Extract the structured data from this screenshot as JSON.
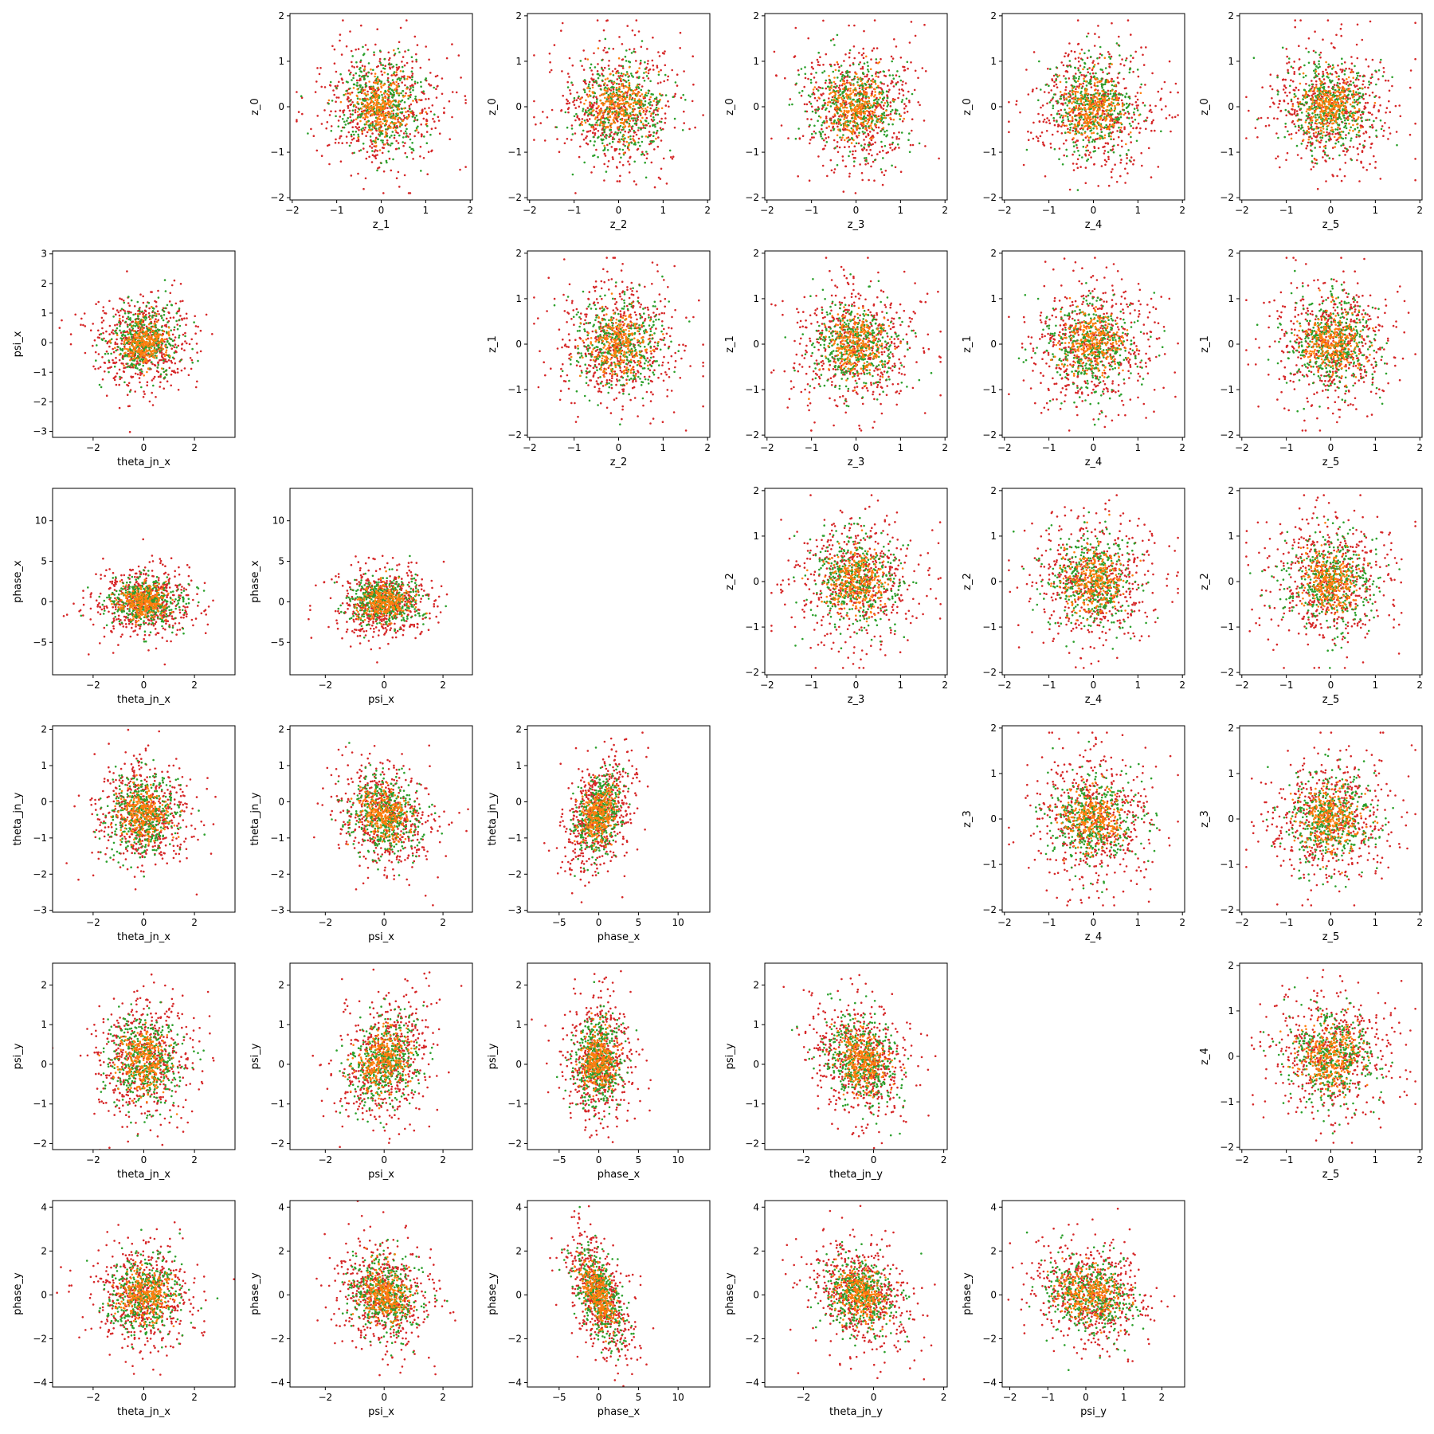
{
  "figure": {
    "type": "scatter-grid",
    "rows": 6,
    "cols": 6,
    "palette": {
      "red": "#d62728",
      "green": "#2ca02c",
      "orange": "#ff7f0e",
      "axis": "#000000",
      "background": "#ffffff"
    }
  },
  "axis_specs": {
    "z": {
      "lim": [
        -2.05,
        2.05
      ],
      "ticks": [
        -2,
        -1,
        0,
        1,
        2
      ],
      "std": 0.72,
      "clip": 1.9
    },
    "theta_jn_x": {
      "lim": [
        -3.6,
        3.6
      ],
      "ticks": [
        -2,
        0,
        2
      ],
      "mean": 0.0,
      "std": 1.0
    },
    "psi_x": {
      "lim": [
        -3.2,
        3.0
      ],
      "ticks": [
        -2,
        0,
        2
      ],
      "mean": 0.0,
      "std": 0.85
    },
    "phase_x": {
      "lim": [
        -9.5,
        14.0
      ],
      "ticks": [
        -5,
        0,
        5,
        10
      ],
      "mean": 0.0,
      "std": 2.2
    },
    "theta_jn_y": {
      "lim": [
        -3.0,
        2.1
      ],
      "ticks": [
        -2,
        0,
        2
      ],
      "tick_labels_y": [
        -3,
        -2,
        -1,
        0,
        1,
        2
      ],
      "mean": -0.35,
      "std": 0.75
    },
    "psi_y": {
      "lim": [
        -2.15,
        2.55
      ],
      "ticks": [
        -2,
        -1,
        0,
        1,
        2
      ],
      "mean": 0.1,
      "std": 0.8
    },
    "phase_y": {
      "lim": [
        -4.2,
        4.3
      ],
      "ticks": [
        -4,
        -2,
        0,
        2,
        4
      ],
      "mean": 0.0,
      "std": 1.25
    },
    "theta_jn_y_as_x": {
      "lim": [
        -3.1,
        2.1
      ],
      "ticks": [
        -2,
        0,
        2
      ]
    },
    "psi_y_as_x": {
      "lim": [
        -2.2,
        2.6
      ],
      "ticks": [
        -2,
        -1,
        0,
        1,
        2
      ]
    }
  },
  "chart_data": [
    {
      "type": "scatter",
      "row": 0,
      "col": 1,
      "xlabel": "z_1",
      "ylabel": "z_0",
      "xlim": [
        -2.05,
        2.05
      ],
      "ylim": [
        -2.05,
        2.05
      ],
      "xticks": [
        -2,
        -1,
        0,
        1,
        2
      ],
      "yticks": [
        -2,
        -1,
        0,
        1,
        2
      ],
      "x_range": "z",
      "y_range": "z",
      "seed": 11,
      "corr": 0
    },
    {
      "type": "scatter",
      "row": 0,
      "col": 2,
      "xlabel": "z_2",
      "ylabel": "z_0",
      "xlim": [
        -2.05,
        2.05
      ],
      "ylim": [
        -2.05,
        2.05
      ],
      "xticks": [
        -2,
        -1,
        0,
        1,
        2
      ],
      "yticks": [
        -2,
        -1,
        0,
        1,
        2
      ],
      "x_range": "z",
      "y_range": "z",
      "seed": 12,
      "corr": 0
    },
    {
      "type": "scatter",
      "row": 0,
      "col": 3,
      "xlabel": "z_3",
      "ylabel": "z_0",
      "xlim": [
        -2.05,
        2.05
      ],
      "ylim": [
        -2.05,
        2.05
      ],
      "xticks": [
        -2,
        -1,
        0,
        1,
        2
      ],
      "yticks": [
        -2,
        -1,
        0,
        1,
        2
      ],
      "x_range": "z",
      "y_range": "z",
      "seed": 13,
      "corr": 0
    },
    {
      "type": "scatter",
      "row": 0,
      "col": 4,
      "xlabel": "z_4",
      "ylabel": "z_0",
      "xlim": [
        -2.05,
        2.05
      ],
      "ylim": [
        -2.05,
        2.05
      ],
      "xticks": [
        -2,
        -1,
        0,
        1,
        2
      ],
      "yticks": [
        -2,
        -1,
        0,
        1,
        2
      ],
      "x_range": "z",
      "y_range": "z",
      "seed": 14,
      "corr": 0
    },
    {
      "type": "scatter",
      "row": 0,
      "col": 5,
      "xlabel": "z_5",
      "ylabel": "z_0",
      "xlim": [
        -2.05,
        2.05
      ],
      "ylim": [
        -2.05,
        2.05
      ],
      "xticks": [
        -2,
        -1,
        0,
        1,
        2
      ],
      "yticks": [
        -2,
        -1,
        0,
        1,
        2
      ],
      "x_range": "z",
      "y_range": "z",
      "seed": 15,
      "corr": 0
    },
    {
      "type": "scatter",
      "row": 1,
      "col": 0,
      "xlabel": "theta_jn_x",
      "ylabel": "psi_x",
      "xlim": [
        -3.6,
        3.6
      ],
      "ylim": [
        -3.2,
        3.1
      ],
      "xticks": [
        -2,
        0,
        2
      ],
      "yticks": [
        -3,
        -2,
        -1,
        0,
        1,
        2,
        3
      ],
      "x_range": "theta_jn_x",
      "y_range": "psi_x",
      "seed": 21,
      "corr": 0.1
    },
    {
      "type": "scatter",
      "row": 1,
      "col": 2,
      "xlabel": "z_2",
      "ylabel": "z_1",
      "xlim": [
        -2.05,
        2.05
      ],
      "ylim": [
        -2.05,
        2.05
      ],
      "xticks": [
        -2,
        -1,
        0,
        1,
        2
      ],
      "yticks": [
        -2,
        -1,
        0,
        1,
        2
      ],
      "x_range": "z",
      "y_range": "z",
      "seed": 22,
      "corr": 0
    },
    {
      "type": "scatter",
      "row": 1,
      "col": 3,
      "xlabel": "z_3",
      "ylabel": "z_1",
      "xlim": [
        -2.05,
        2.05
      ],
      "ylim": [
        -2.05,
        2.05
      ],
      "xticks": [
        -2,
        -1,
        0,
        1,
        2
      ],
      "yticks": [
        -2,
        -1,
        0,
        1,
        2
      ],
      "x_range": "z",
      "y_range": "z",
      "seed": 23,
      "corr": 0
    },
    {
      "type": "scatter",
      "row": 1,
      "col": 4,
      "xlabel": "z_4",
      "ylabel": "z_1",
      "xlim": [
        -2.05,
        2.05
      ],
      "ylim": [
        -2.05,
        2.05
      ],
      "xticks": [
        -2,
        -1,
        0,
        1,
        2
      ],
      "yticks": [
        -2,
        -1,
        0,
        1,
        2
      ],
      "x_range": "z",
      "y_range": "z",
      "seed": 24,
      "corr": 0
    },
    {
      "type": "scatter",
      "row": 1,
      "col": 5,
      "xlabel": "z_5",
      "ylabel": "z_1",
      "xlim": [
        -2.05,
        2.05
      ],
      "ylim": [
        -2.05,
        2.05
      ],
      "xticks": [
        -2,
        -1,
        0,
        1,
        2
      ],
      "yticks": [
        -2,
        -1,
        0,
        1,
        2
      ],
      "x_range": "z",
      "y_range": "z",
      "seed": 25,
      "corr": 0
    },
    {
      "type": "scatter",
      "row": 2,
      "col": 0,
      "xlabel": "theta_jn_x",
      "ylabel": "phase_x",
      "xlim": [
        -3.6,
        3.6
      ],
      "ylim": [
        -9.0,
        14.0
      ],
      "xticks": [
        -2,
        0,
        2
      ],
      "yticks": [
        -5,
        0,
        5,
        10
      ],
      "x_range": "theta_jn_x",
      "y_range": "phase_x",
      "seed": 31,
      "corr": 0
    },
    {
      "type": "scatter",
      "row": 2,
      "col": 1,
      "xlabel": "psi_x",
      "ylabel": "phase_x",
      "xlim": [
        -3.2,
        3.0
      ],
      "ylim": [
        -9.0,
        14.0
      ],
      "xticks": [
        -2,
        0,
        2
      ],
      "yticks": [
        -5,
        0,
        5,
        10
      ],
      "x_range": "psi_x",
      "y_range": "phase_x",
      "seed": 32,
      "corr": 0
    },
    {
      "type": "scatter",
      "row": 2,
      "col": 3,
      "xlabel": "z_3",
      "ylabel": "z_2",
      "xlim": [
        -2.05,
        2.05
      ],
      "ylim": [
        -2.05,
        2.05
      ],
      "xticks": [
        -2,
        -1,
        0,
        1,
        2
      ],
      "yticks": [
        -2,
        -1,
        0,
        1,
        2
      ],
      "x_range": "z",
      "y_range": "z",
      "seed": 33,
      "corr": 0
    },
    {
      "type": "scatter",
      "row": 2,
      "col": 4,
      "xlabel": "z_4",
      "ylabel": "z_2",
      "xlim": [
        -2.05,
        2.05
      ],
      "ylim": [
        -2.05,
        2.05
      ],
      "xticks": [
        -2,
        -1,
        0,
        1,
        2
      ],
      "yticks": [
        -2,
        -1,
        0,
        1,
        2
      ],
      "x_range": "z",
      "y_range": "z",
      "seed": 34,
      "corr": 0
    },
    {
      "type": "scatter",
      "row": 2,
      "col": 5,
      "xlabel": "z_5",
      "ylabel": "z_2",
      "xlim": [
        -2.05,
        2.05
      ],
      "ylim": [
        -2.05,
        2.05
      ],
      "xticks": [
        -2,
        -1,
        0,
        1,
        2
      ],
      "yticks": [
        -2,
        -1,
        0,
        1,
        2
      ],
      "x_range": "z",
      "y_range": "z",
      "seed": 35,
      "corr": 0
    },
    {
      "type": "scatter",
      "row": 3,
      "col": 0,
      "xlabel": "theta_jn_x",
      "ylabel": "theta_jn_y",
      "xlim": [
        -3.6,
        3.6
      ],
      "ylim": [
        -3.05,
        2.1
      ],
      "xticks": [
        -2,
        0,
        2
      ],
      "yticks": [
        -3,
        -2,
        -1,
        0,
        1,
        2
      ],
      "x_range": "theta_jn_x",
      "y_range": "theta_jn_y",
      "seed": 41,
      "corr": 0
    },
    {
      "type": "scatter",
      "row": 3,
      "col": 1,
      "xlabel": "psi_x",
      "ylabel": "theta_jn_y",
      "xlim": [
        -3.2,
        3.0
      ],
      "ylim": [
        -3.05,
        2.1
      ],
      "xticks": [
        -2,
        0,
        2
      ],
      "yticks": [
        -3,
        -2,
        -1,
        0,
        1,
        2
      ],
      "x_range": "psi_x",
      "y_range": "theta_jn_y",
      "seed": 42,
      "corr": -0.2
    },
    {
      "type": "scatter",
      "row": 3,
      "col": 2,
      "xlabel": "phase_x",
      "ylabel": "theta_jn_y",
      "xlim": [
        -9.0,
        14.0
      ],
      "ylim": [
        -3.05,
        2.1
      ],
      "xticks": [
        -5,
        0,
        5,
        10
      ],
      "yticks": [
        -3,
        -2,
        -1,
        0,
        1,
        2
      ],
      "x_range": "phase_x",
      "y_range": "theta_jn_y",
      "seed": 43,
      "corr": 0.35
    },
    {
      "type": "scatter",
      "row": 3,
      "col": 4,
      "xlabel": "z_4",
      "ylabel": "z_3",
      "xlim": [
        -2.05,
        2.05
      ],
      "ylim": [
        -2.05,
        2.05
      ],
      "xticks": [
        -2,
        -1,
        0,
        1,
        2
      ],
      "yticks": [
        -2,
        -1,
        0,
        1,
        2
      ],
      "x_range": "z",
      "y_range": "z",
      "seed": 44,
      "corr": 0
    },
    {
      "type": "scatter",
      "row": 3,
      "col": 5,
      "xlabel": "z_5",
      "ylabel": "z_3",
      "xlim": [
        -2.05,
        2.05
      ],
      "ylim": [
        -2.05,
        2.05
      ],
      "xticks": [
        -2,
        -1,
        0,
        1,
        2
      ],
      "yticks": [
        -2,
        -1,
        0,
        1,
        2
      ],
      "x_range": "z",
      "y_range": "z",
      "seed": 45,
      "corr": 0
    },
    {
      "type": "scatter",
      "row": 4,
      "col": 0,
      "xlabel": "theta_jn_x",
      "ylabel": "psi_y",
      "xlim": [
        -3.6,
        3.6
      ],
      "ylim": [
        -2.15,
        2.55
      ],
      "xticks": [
        -2,
        0,
        2
      ],
      "yticks": [
        -2,
        -1,
        0,
        1,
        2
      ],
      "x_range": "theta_jn_x",
      "y_range": "psi_y",
      "seed": 51,
      "corr": 0
    },
    {
      "type": "scatter",
      "row": 4,
      "col": 1,
      "xlabel": "psi_x",
      "ylabel": "psi_y",
      "xlim": [
        -3.2,
        3.0
      ],
      "ylim": [
        -2.15,
        2.55
      ],
      "xticks": [
        -2,
        0,
        2
      ],
      "yticks": [
        -2,
        -1,
        0,
        1,
        2
      ],
      "x_range": "psi_x",
      "y_range": "psi_y",
      "seed": 52,
      "corr": 0.25
    },
    {
      "type": "scatter",
      "row": 4,
      "col": 2,
      "xlabel": "phase_x",
      "ylabel": "psi_y",
      "xlim": [
        -9.0,
        14.0
      ],
      "ylim": [
        -2.15,
        2.55
      ],
      "xticks": [
        -5,
        0,
        5,
        10
      ],
      "yticks": [
        -2,
        -1,
        0,
        1,
        2
      ],
      "x_range": "phase_x",
      "y_range": "psi_y",
      "seed": 53,
      "corr": 0
    },
    {
      "type": "scatter",
      "row": 4,
      "col": 3,
      "xlabel": "theta_jn_y",
      "ylabel": "psi_y",
      "xlim": [
        -3.1,
        2.1
      ],
      "ylim": [
        -2.15,
        2.55
      ],
      "xticks": [
        -2,
        0,
        2
      ],
      "yticks": [
        -2,
        -1,
        0,
        1,
        2
      ],
      "x_range": "theta_jn_y",
      "y_range": "psi_y",
      "seed": 54,
      "corr": -0.25
    },
    {
      "type": "scatter",
      "row": 4,
      "col": 5,
      "xlabel": "z_5",
      "ylabel": "z_4",
      "xlim": [
        -2.05,
        2.05
      ],
      "ylim": [
        -2.05,
        2.05
      ],
      "xticks": [
        -2,
        -1,
        0,
        1,
        2
      ],
      "yticks": [
        -2,
        -1,
        0,
        1,
        2
      ],
      "x_range": "z",
      "y_range": "z",
      "seed": 55,
      "corr": 0
    },
    {
      "type": "scatter",
      "row": 5,
      "col": 0,
      "xlabel": "theta_jn_x",
      "ylabel": "phase_y",
      "xlim": [
        -3.6,
        3.6
      ],
      "ylim": [
        -4.2,
        4.3
      ],
      "xticks": [
        -2,
        0,
        2
      ],
      "yticks": [
        -4,
        -2,
        0,
        2,
        4
      ],
      "x_range": "theta_jn_x",
      "y_range": "phase_y",
      "seed": 61,
      "corr": 0
    },
    {
      "type": "scatter",
      "row": 5,
      "col": 1,
      "xlabel": "psi_x",
      "ylabel": "phase_y",
      "xlim": [
        -3.2,
        3.0
      ],
      "ylim": [
        -4.2,
        4.3
      ],
      "xticks": [
        -2,
        0,
        2
      ],
      "yticks": [
        -4,
        -2,
        0,
        2,
        4
      ],
      "x_range": "psi_x",
      "y_range": "phase_y",
      "seed": 62,
      "corr": -0.1
    },
    {
      "type": "scatter",
      "row": 5,
      "col": 2,
      "xlabel": "phase_x",
      "ylabel": "phase_y",
      "xlim": [
        -9.0,
        14.0
      ],
      "ylim": [
        -4.2,
        4.3
      ],
      "xticks": [
        -5,
        0,
        5,
        10
      ],
      "yticks": [
        -4,
        -2,
        0,
        2,
        4
      ],
      "x_range": "phase_x",
      "y_range": "phase_y",
      "seed": 63,
      "corr": -0.7
    },
    {
      "type": "scatter",
      "row": 5,
      "col": 3,
      "xlabel": "theta_jn_y",
      "ylabel": "phase_y",
      "xlim": [
        -3.1,
        2.1
      ],
      "ylim": [
        -4.2,
        4.3
      ],
      "xticks": [
        -2,
        0,
        2
      ],
      "yticks": [
        -4,
        -2,
        0,
        2,
        4
      ],
      "x_range": "theta_jn_y",
      "y_range": "phase_y",
      "seed": 64,
      "corr": -0.2
    },
    {
      "type": "scatter",
      "row": 5,
      "col": 4,
      "xlabel": "psi_y",
      "ylabel": "phase_y",
      "xlim": [
        -2.2,
        2.6
      ],
      "ylim": [
        -4.2,
        4.3
      ],
      "xticks": [
        -2,
        -1,
        0,
        1,
        2
      ],
      "yticks": [
        -4,
        -2,
        0,
        2,
        4
      ],
      "x_range": "psi_y",
      "y_range": "phase_y",
      "seed": 65,
      "corr": -0.15
    }
  ]
}
